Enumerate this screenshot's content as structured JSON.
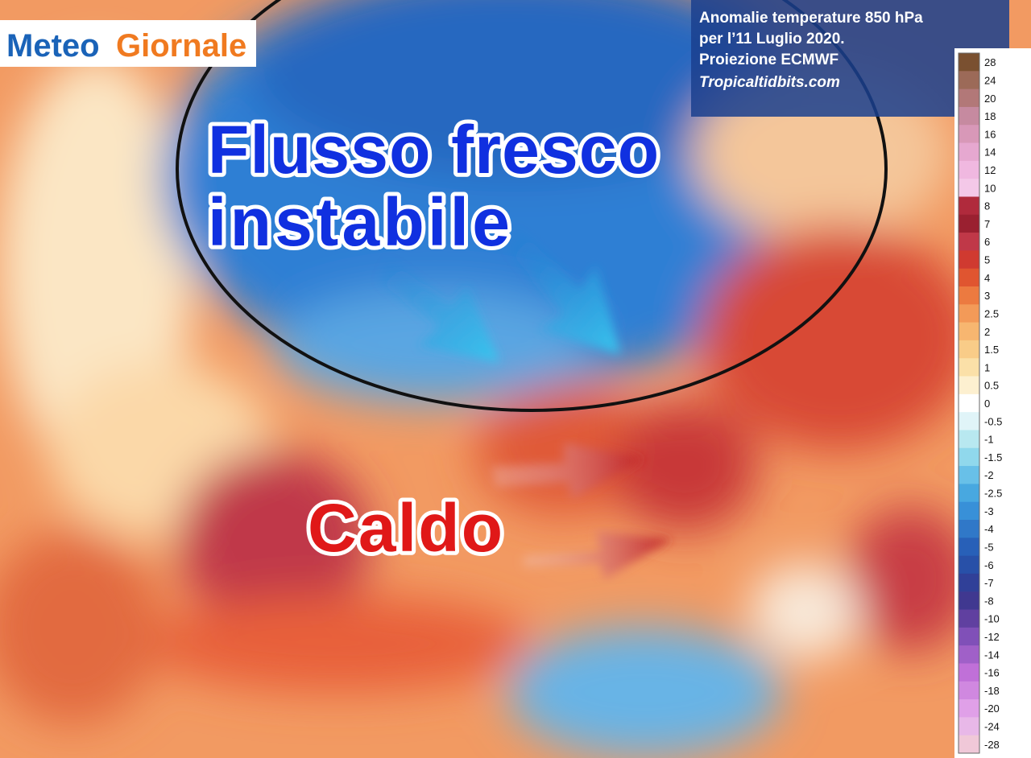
{
  "logo": {
    "part1": "Meteo",
    "part2": "Giornale"
  },
  "info_box": {
    "lines": [
      "Anomalie temperature 850 hPa",
      "per l’11 Luglio 2020.",
      "Proiezione ECMWF",
      "Tropicaltidbits.com"
    ]
  },
  "annotations": {
    "cool_flow": [
      "Flusso fresco",
      "instabile"
    ],
    "heat": "Caldo"
  },
  "colorbar": {
    "items": [
      {
        "label": "28",
        "color": "#7a5030"
      },
      {
        "label": "24",
        "color": "#9c6a58"
      },
      {
        "label": "20",
        "color": "#b27878"
      },
      {
        "label": "18",
        "color": "#c68aa0"
      },
      {
        "label": "16",
        "color": "#d898b8"
      },
      {
        "label": "14",
        "color": "#e6a8d0"
      },
      {
        "label": "12",
        "color": "#f0b8e0"
      },
      {
        "label": "10",
        "color": "#f4c8e8"
      },
      {
        "label": "8",
        "color": "#b02a3c"
      },
      {
        "label": "7",
        "color": "#9a2030"
      },
      {
        "label": "6",
        "color": "#c03848"
      },
      {
        "label": "5",
        "color": "#d03a30"
      },
      {
        "label": "4",
        "color": "#e05530"
      },
      {
        "label": "3",
        "color": "#ec7a40"
      },
      {
        "label": "2.5",
        "color": "#f39a58"
      },
      {
        "label": "2",
        "color": "#f7b670"
      },
      {
        "label": "1.5",
        "color": "#f9cc88"
      },
      {
        "label": "1",
        "color": "#fbe0a8"
      },
      {
        "label": "0.5",
        "color": "#fdf0d0"
      },
      {
        "label": "0",
        "color": "#ffffff"
      },
      {
        "label": "-0.5",
        "color": "#e0f4f8"
      },
      {
        "label": "-1",
        "color": "#b8e8f0"
      },
      {
        "label": "-1.5",
        "color": "#90d8ec"
      },
      {
        "label": "-2",
        "color": "#68c0e8"
      },
      {
        "label": "-2.5",
        "color": "#48a8e0"
      },
      {
        "label": "-3",
        "color": "#3890d8"
      },
      {
        "label": "-4",
        "color": "#3078c8"
      },
      {
        "label": "-5",
        "color": "#2860b8"
      },
      {
        "label": "-6",
        "color": "#2850a8"
      },
      {
        "label": "-7",
        "color": "#304098"
      },
      {
        "label": "-8",
        "color": "#403890"
      },
      {
        "label": "-10",
        "color": "#6040a0"
      },
      {
        "label": "-12",
        "color": "#8050b8"
      },
      {
        "label": "-14",
        "color": "#a060c8"
      },
      {
        "label": "-16",
        "color": "#c070d8"
      },
      {
        "label": "-18",
        "color": "#d088e0"
      },
      {
        "label": "-20",
        "color": "#e0a0e8"
      },
      {
        "label": "-24",
        "color": "#e8b8e8"
      },
      {
        "label": "-28",
        "color": "#f0c8d8"
      }
    ]
  }
}
